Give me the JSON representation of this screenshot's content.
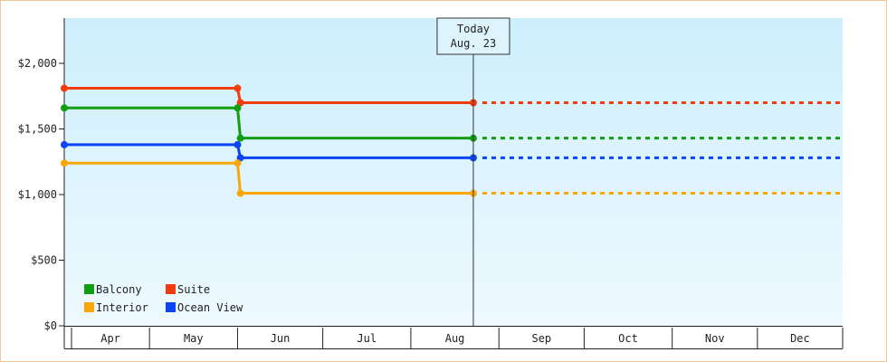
{
  "chart_data": {
    "type": "line",
    "title": "",
    "xlabel": "",
    "ylabel": "",
    "ylim": [
      0,
      2000
    ],
    "y_ticks": [
      {
        "value": 0,
        "label": "$0"
      },
      {
        "value": 500,
        "label": "$500"
      },
      {
        "value": 1000,
        "label": "$1,000"
      },
      {
        "value": 1500,
        "label": "$1,500"
      },
      {
        "value": 2000,
        "label": "$2,000"
      }
    ],
    "x_start": "2023-04-01",
    "x_end": "2023-12-31",
    "months": [
      {
        "label": "Apr",
        "start": "2023-04-01",
        "end": "2023-05-01"
      },
      {
        "label": "May",
        "start": "2023-05-01",
        "end": "2023-06-01"
      },
      {
        "label": "Jun",
        "start": "2023-06-01",
        "end": "2023-07-01"
      },
      {
        "label": "Jul",
        "start": "2023-07-01",
        "end": "2023-08-01"
      },
      {
        "label": "Aug",
        "start": "2023-08-01",
        "end": "2023-09-01"
      },
      {
        "label": "Sep",
        "start": "2023-09-01",
        "end": "2023-10-01"
      },
      {
        "label": "Oct",
        "start": "2023-10-01",
        "end": "2023-11-01"
      },
      {
        "label": "Nov",
        "start": "2023-11-01",
        "end": "2023-12-01"
      },
      {
        "label": "Dec",
        "start": "2023-12-01",
        "end": "2023-12-31"
      }
    ],
    "today": {
      "date": "2023-08-23",
      "label_line1": "Today",
      "label_line2": "Aug. 23"
    },
    "legend_position": "bottom-left",
    "grid": false,
    "background": {
      "top": "#cdeffc",
      "bottom": "#eef9ff"
    },
    "series": [
      {
        "name": "Suite",
        "color": "#f23c0d",
        "points": [
          {
            "date": "2023-04-01",
            "value": 1810
          },
          {
            "date": "2023-06-01",
            "value": 1810
          },
          {
            "date": "2023-06-02",
            "value": 1700
          },
          {
            "date": "2023-08-23",
            "value": 1700
          }
        ],
        "projection": {
          "from": "2023-08-23",
          "to": "2023-12-31",
          "value": 1700
        }
      },
      {
        "name": "Balcony",
        "color": "#119e11",
        "points": [
          {
            "date": "2023-04-01",
            "value": 1660
          },
          {
            "date": "2023-06-01",
            "value": 1660
          },
          {
            "date": "2023-06-02",
            "value": 1430
          },
          {
            "date": "2023-08-23",
            "value": 1430
          }
        ],
        "projection": {
          "from": "2023-08-23",
          "to": "2023-12-31",
          "value": 1430
        }
      },
      {
        "name": "Ocean View",
        "color": "#0a44f5",
        "points": [
          {
            "date": "2023-04-01",
            "value": 1380
          },
          {
            "date": "2023-06-01",
            "value": 1380
          },
          {
            "date": "2023-06-02",
            "value": 1280
          },
          {
            "date": "2023-08-23",
            "value": 1280
          }
        ],
        "projection": {
          "from": "2023-08-23",
          "to": "2023-12-31",
          "value": 1280
        }
      },
      {
        "name": "Interior",
        "color": "#f8a60a",
        "points": [
          {
            "date": "2023-04-01",
            "value": 1240
          },
          {
            "date": "2023-06-01",
            "value": 1240
          },
          {
            "date": "2023-06-02",
            "value": 1010
          },
          {
            "date": "2023-08-23",
            "value": 1010
          }
        ],
        "projection": {
          "from": "2023-08-23",
          "to": "2023-12-31",
          "value": 1010
        }
      }
    ],
    "legend_order": [
      "Balcony",
      "Suite",
      "Interior",
      "Ocean View"
    ]
  }
}
